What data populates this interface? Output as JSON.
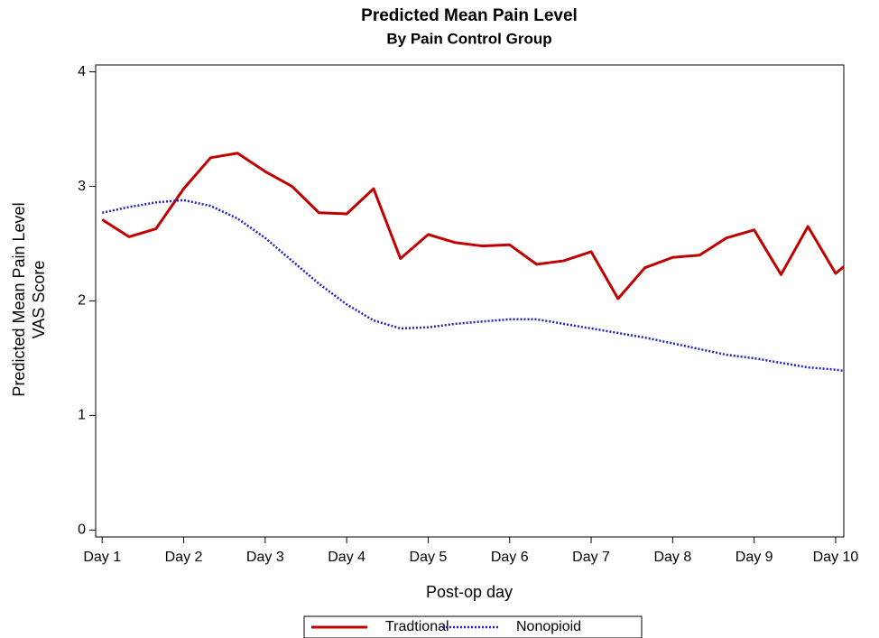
{
  "chart_data": {
    "type": "line",
    "title": "Predicted Mean Pain Level",
    "subtitle": "By Pain Control Group",
    "xlabel": "Post-op day",
    "ylabel": [
      "Predicted Mean Pain Level",
      "VAS Score"
    ],
    "x": [
      1,
      1.33,
      1.66,
      2,
      2.33,
      2.66,
      3,
      3.33,
      3.66,
      4,
      4.33,
      4.66,
      5,
      5.33,
      5.66,
      6,
      6.33,
      6.66,
      7,
      7.33,
      7.66,
      8,
      8.33,
      8.66,
      9,
      9.33,
      9.66,
      10,
      10.1
    ],
    "series": [
      {
        "name": "Tradtional",
        "color": "#c00000",
        "style": "solid",
        "values": [
          2.71,
          2.56,
          2.63,
          2.98,
          3.25,
          3.29,
          3.13,
          3.0,
          2.77,
          2.76,
          2.98,
          2.37,
          2.58,
          2.51,
          2.48,
          2.49,
          2.32,
          2.35,
          2.43,
          2.02,
          2.29,
          2.38,
          2.4,
          2.55,
          2.62,
          2.23,
          2.65,
          2.24,
          2.3
        ]
      },
      {
        "name": "Nonopioid",
        "color": "#1f1fd0",
        "style": "dotted",
        "values": [
          2.77,
          2.82,
          2.86,
          2.88,
          2.83,
          2.72,
          2.55,
          2.35,
          2.15,
          1.97,
          1.83,
          1.76,
          1.77,
          1.8,
          1.82,
          1.84,
          1.84,
          1.8,
          1.76,
          1.72,
          1.68,
          1.63,
          1.58,
          1.53,
          1.5,
          1.46,
          1.42,
          1.4,
          1.39
        ]
      }
    ],
    "xlim": [
      0.92,
      10.1
    ],
    "xticks": [
      {
        "value": 1,
        "label": "Day 1"
      },
      {
        "value": 2,
        "label": "Day 2"
      },
      {
        "value": 3,
        "label": "Day 3"
      },
      {
        "value": 4,
        "label": "Day 4"
      },
      {
        "value": 5,
        "label": "Day 5"
      },
      {
        "value": 6,
        "label": "Day 6"
      },
      {
        "value": 7,
        "label": "Day 7"
      },
      {
        "value": 8,
        "label": "Day 8"
      },
      {
        "value": 9,
        "label": "Day 9"
      },
      {
        "value": 10,
        "label": "Day 10"
      }
    ],
    "ylim": [
      -0.06,
      4.06
    ],
    "yticks": [
      0,
      1,
      2,
      3,
      4
    ],
    "legend": "bottom"
  }
}
